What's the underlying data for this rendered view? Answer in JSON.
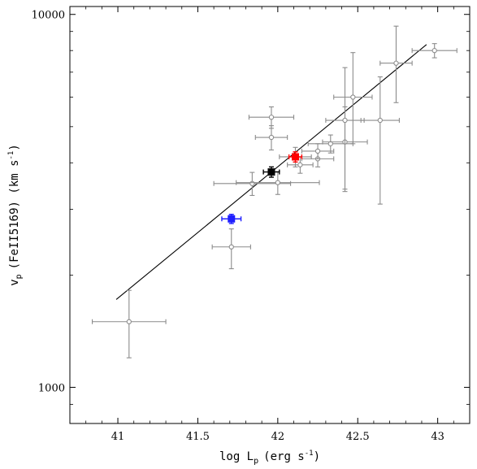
{
  "chart_data": {
    "type": "scatter",
    "title": "",
    "xlabel": {
      "main": "log L",
      "sub": "p",
      "units_pre": "(erg s",
      "sup": "-1",
      "units_post": ")"
    },
    "ylabel": {
      "main": "v",
      "sub": "p",
      "rest_pre": "(FeII5169) (km s",
      "sup": "-1",
      "rest_post": ")"
    },
    "xlim": [
      40.7,
      43.2
    ],
    "ylim": [
      800,
      10500
    ],
    "yscale": "log",
    "xticks": [
      41,
      41.5,
      42,
      42.5,
      43
    ],
    "xtick_labels": [
      "41",
      "41.5",
      "42",
      "42.5",
      "43"
    ],
    "yticks_major": [
      1000,
      10000
    ],
    "ytick_labels": [
      "1000",
      "10000"
    ],
    "grid": false,
    "colors": {
      "sample": "#8c8c8c",
      "red": "#ff0000",
      "black": "#000000",
      "blue": "#1f1fff",
      "fit": "#000000"
    },
    "fit_line": {
      "x": [
        40.99,
        42.93
      ],
      "y": [
        1720,
        8300
      ]
    },
    "series": [
      {
        "color_key": "sample",
        "marker": "open-circle",
        "points": [
          {
            "x": 41.07,
            "y": 1500,
            "xerr": [
              0.23,
              0.23
            ],
            "yerr": [
              300,
              320
            ]
          },
          {
            "x": 41.71,
            "y": 2380,
            "xerr": [
              0.12,
              0.12
            ],
            "yerr": [
              300,
              280
            ]
          },
          {
            "x": 41.84,
            "y": 3520,
            "xerr": [
              0.24,
              0.24
            ],
            "yerr": [
              250,
              250
            ]
          },
          {
            "x": 42.0,
            "y": 3540,
            "xerr": [
              0.26,
              0.26
            ],
            "yerr": [
              250,
              250
            ]
          },
          {
            "x": 41.96,
            "y": 4680,
            "xerr": [
              0.1,
              0.1
            ],
            "yerr": [
              350,
              350
            ]
          },
          {
            "x": 41.96,
            "y": 5300,
            "xerr": [
              0.14,
              0.14
            ],
            "yerr": [
              350,
              350
            ]
          },
          {
            "x": 42.11,
            "y": 4150,
            "xerr": [
              0.1,
              0.1
            ],
            "yerr": [
              250,
              250
            ]
          },
          {
            "x": 42.14,
            "y": 3950,
            "xerr": [
              0.08,
              0.08
            ],
            "yerr": [
              200,
              200
            ]
          },
          {
            "x": 42.25,
            "y": 4100,
            "xerr": [
              0.1,
              0.1
            ],
            "yerr": [
              200,
              200
            ]
          },
          {
            "x": 42.25,
            "y": 4300,
            "xerr": [
              0.1,
              0.1
            ],
            "yerr": [
              200,
              200
            ]
          },
          {
            "x": 42.33,
            "y": 4500,
            "xerr": [
              0.14,
              0.14
            ],
            "yerr": [
              250,
              250
            ]
          },
          {
            "x": 42.42,
            "y": 4550,
            "xerr": [
              0.14,
              0.14
            ],
            "yerr": [
              1200,
              1100
            ]
          },
          {
            "x": 42.42,
            "y": 5200,
            "xerr": [
              0.12,
              0.12
            ],
            "yerr": [
              1800,
              2000
            ]
          },
          {
            "x": 42.47,
            "y": 6000,
            "xerr": [
              0.12,
              0.12
            ],
            "yerr": [
              1500,
              1900
            ]
          },
          {
            "x": 42.64,
            "y": 5200,
            "xerr": [
              0.12,
              0.12
            ],
            "yerr": [
              2100,
              1600
            ]
          },
          {
            "x": 42.74,
            "y": 7400,
            "xerr": [
              0.1,
              0.1
            ],
            "yerr": [
              1600,
              1900
            ]
          },
          {
            "x": 42.98,
            "y": 8000,
            "xerr": [
              0.14,
              0.14
            ],
            "yerr": [
              350,
              350
            ]
          }
        ]
      },
      {
        "color_key": "red",
        "marker": "filled-square",
        "points": [
          {
            "x": 42.11,
            "y": 4150,
            "xerr": [
              0.04,
              0.04
            ],
            "yerr": [
              130,
              130
            ]
          }
        ]
      },
      {
        "color_key": "black",
        "marker": "filled-square",
        "points": [
          {
            "x": 41.96,
            "y": 3780,
            "xerr": [
              0.05,
              0.05
            ],
            "yerr": [
              120,
              120
            ]
          }
        ]
      },
      {
        "color_key": "blue",
        "marker": "filled-square",
        "points": [
          {
            "x": 41.71,
            "y": 2830,
            "xerr": [
              0.06,
              0.06
            ],
            "yerr": [
              80,
              80
            ]
          }
        ]
      }
    ]
  }
}
